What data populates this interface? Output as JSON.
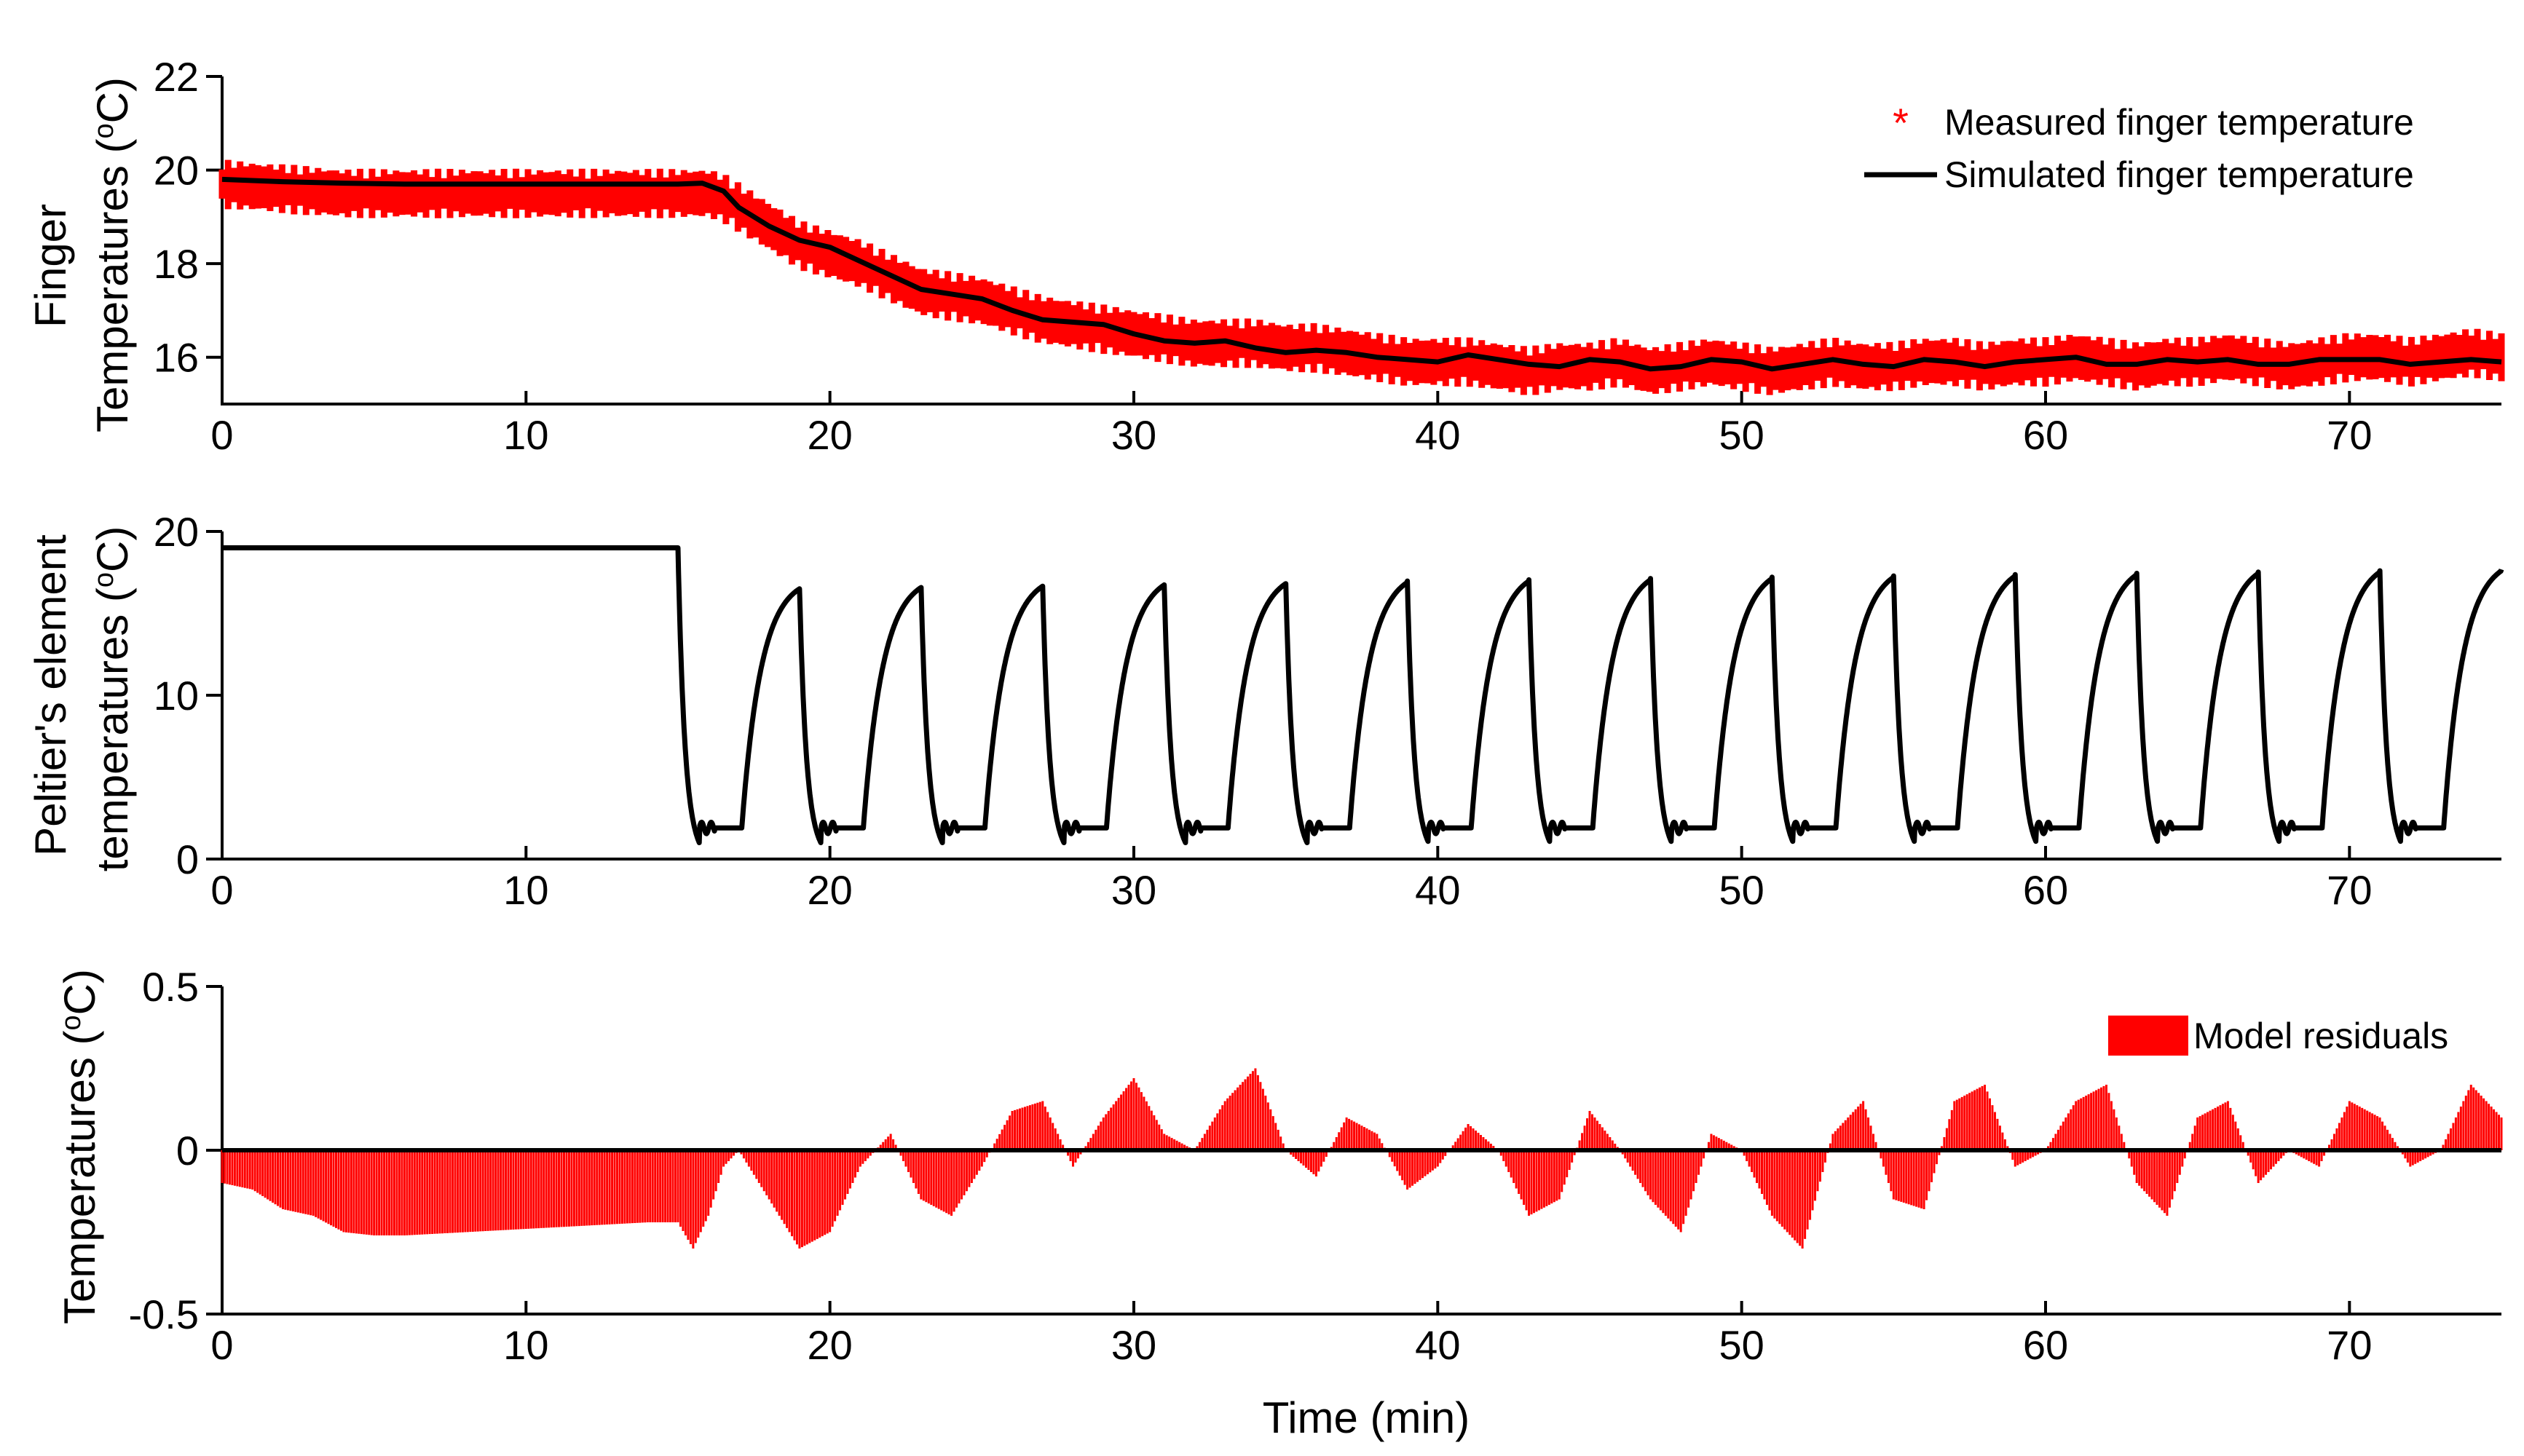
{
  "colors": {
    "measured": "#ff0000",
    "simulated": "#000000",
    "residual": "#ff0000",
    "axis": "#000000"
  },
  "chart_data": [
    {
      "type": "line",
      "ylabel_line1": "Finger",
      "ylabel_line2": "Temperatures (",
      "ylabel_sup": "o",
      "ylabel_end": "C)",
      "xlim": [
        0,
        75
      ],
      "ylim": [
        15,
        22
      ],
      "xticks": [
        0,
        10,
        20,
        30,
        40,
        50,
        60,
        70
      ],
      "yticks": [
        16,
        18,
        20,
        22
      ],
      "legend_position": "top-right",
      "series": [
        {
          "name": "Measured finger temperature",
          "marker": "*",
          "x": [
            0,
            2,
            4,
            6,
            8,
            10,
            12,
            14,
            15,
            16,
            16.5,
            17,
            18,
            19,
            20,
            21,
            22,
            23,
            24,
            25,
            26,
            27,
            28,
            29,
            30,
            31,
            32,
            33,
            34,
            35,
            36,
            37,
            38,
            39,
            40,
            41,
            42,
            43,
            44,
            45,
            46,
            47,
            48,
            49,
            50,
            51,
            52,
            53,
            54,
            55,
            56,
            57,
            58,
            59,
            60,
            61,
            62,
            63,
            64,
            65,
            66,
            67,
            68,
            69,
            70,
            71,
            72,
            73,
            74,
            75
          ],
          "y": [
            19.7,
            19.6,
            19.5,
            19.5,
            19.5,
            19.5,
            19.5,
            19.5,
            19.5,
            19.5,
            19.4,
            19.2,
            18.8,
            18.4,
            18.2,
            18.0,
            17.7,
            17.4,
            17.3,
            17.2,
            17.0,
            16.8,
            16.7,
            16.6,
            16.5,
            16.4,
            16.3,
            16.3,
            16.3,
            16.2,
            16.2,
            16.1,
            16.0,
            15.9,
            15.9,
            15.9,
            15.8,
            15.7,
            15.8,
            15.8,
            15.9,
            15.7,
            15.8,
            15.9,
            15.8,
            15.7,
            15.8,
            15.9,
            15.8,
            15.8,
            15.9,
            15.9,
            15.8,
            15.9,
            15.9,
            16.0,
            15.9,
            15.8,
            15.9,
            15.9,
            16.0,
            15.9,
            15.8,
            15.9,
            16.0,
            16.0,
            15.9,
            16.0,
            16.1,
            16.0
          ]
        },
        {
          "name": "Simulated finger temperature",
          "x": [
            0,
            2,
            4,
            6,
            8,
            10,
            12,
            14,
            15,
            15.8,
            16.5,
            17,
            18,
            19,
            20,
            21,
            22,
            23,
            24,
            25,
            26,
            27,
            28,
            29,
            30,
            31,
            32,
            33,
            34,
            35,
            36,
            37,
            38,
            39,
            40,
            41,
            42,
            43,
            44,
            45,
            46,
            47,
            48,
            49,
            50,
            51,
            52,
            53,
            54,
            55,
            56,
            57,
            58,
            59,
            60,
            61,
            62,
            63,
            64,
            65,
            66,
            67,
            68,
            69,
            70,
            71,
            72,
            73,
            74,
            75
          ],
          "y": [
            19.8,
            19.75,
            19.72,
            19.7,
            19.7,
            19.7,
            19.7,
            19.7,
            19.7,
            19.72,
            19.55,
            19.2,
            18.8,
            18.5,
            18.35,
            18.05,
            17.75,
            17.45,
            17.35,
            17.25,
            17.0,
            16.8,
            16.75,
            16.7,
            16.5,
            16.35,
            16.3,
            16.35,
            16.2,
            16.1,
            16.15,
            16.1,
            16.0,
            15.95,
            15.9,
            16.05,
            15.95,
            15.85,
            15.8,
            15.95,
            15.9,
            15.75,
            15.8,
            15.95,
            15.9,
            15.75,
            15.85,
            15.95,
            15.85,
            15.8,
            15.95,
            15.9,
            15.8,
            15.9,
            15.95,
            16.0,
            15.85,
            15.85,
            15.95,
            15.9,
            15.95,
            15.85,
            15.85,
            15.95,
            15.95,
            15.95,
            15.85,
            15.9,
            15.95,
            15.9
          ]
        }
      ]
    },
    {
      "type": "line",
      "ylabel_line1": "Peltier's element",
      "ylabel_line2": "temperatures (",
      "ylabel_sup": "o",
      "ylabel_end": "C)",
      "xlim": [
        0,
        75
      ],
      "ylim": [
        0,
        20
      ],
      "xticks": [
        0,
        10,
        20,
        30,
        40,
        50,
        60,
        70
      ],
      "yticks": [
        0,
        10,
        20
      ],
      "baseline_value": 19,
      "cycle_start": 15,
      "cycle_period": 4,
      "cycle_min": 1.0,
      "cycle_plateau": 1.9,
      "cycle_peak_start": 16.5,
      "cycle_peak_end": 17.6,
      "series": [
        {
          "name": "Peltier's element temperature"
        }
      ]
    },
    {
      "type": "bar",
      "ylabel_line1": "",
      "ylabel_line2": "Temperatures (",
      "ylabel_sup": "o",
      "ylabel_end": "C)",
      "xlabel": "Time (min)",
      "xlim": [
        0,
        75
      ],
      "ylim": [
        -0.5,
        0.5
      ],
      "xticks": [
        0,
        10,
        20,
        30,
        40,
        50,
        60,
        70
      ],
      "yticks": [
        -0.5,
        0,
        0.5
      ],
      "ytick_labels": [
        "-0.5",
        "0",
        "0.5"
      ],
      "legend_position": "top-right",
      "series": [
        {
          "name": "Model residuals",
          "x": [
            0,
            1,
            2,
            3,
            4,
            5,
            6,
            8,
            10,
            12,
            14,
            15,
            15.5,
            16,
            16.5,
            17,
            18,
            19,
            20,
            21,
            22,
            23,
            24,
            25,
            26,
            27,
            28,
            29,
            30,
            31,
            32,
            33,
            34,
            35,
            36,
            37,
            38,
            39,
            40,
            41,
            42,
            43,
            44,
            45,
            46,
            47,
            48,
            49,
            50,
            51,
            52,
            53,
            54,
            55,
            56,
            57,
            58,
            59,
            60,
            61,
            62,
            63,
            64,
            65,
            66,
            67,
            68,
            69,
            70,
            71,
            72,
            73,
            74,
            75
          ],
          "y": [
            -0.1,
            -0.12,
            -0.18,
            -0.2,
            -0.25,
            -0.26,
            -0.26,
            -0.25,
            -0.24,
            -0.23,
            -0.22,
            -0.22,
            -0.3,
            -0.2,
            -0.05,
            0.0,
            -0.15,
            -0.3,
            -0.25,
            -0.05,
            0.05,
            -0.15,
            -0.2,
            -0.05,
            0.12,
            0.15,
            -0.05,
            0.1,
            0.22,
            0.05,
            0.0,
            0.15,
            0.25,
            0.0,
            -0.08,
            0.1,
            0.05,
            -0.12,
            -0.05,
            0.08,
            0.0,
            -0.2,
            -0.15,
            0.12,
            0.0,
            -0.15,
            -0.25,
            0.05,
            0.0,
            -0.2,
            -0.3,
            0.05,
            0.15,
            -0.15,
            -0.18,
            0.15,
            0.2,
            -0.05,
            0.0,
            0.15,
            0.2,
            -0.1,
            -0.2,
            0.1,
            0.15,
            -0.1,
            0.0,
            -0.05,
            0.15,
            0.1,
            -0.05,
            0.0,
            0.2,
            0.1
          ]
        }
      ]
    }
  ]
}
